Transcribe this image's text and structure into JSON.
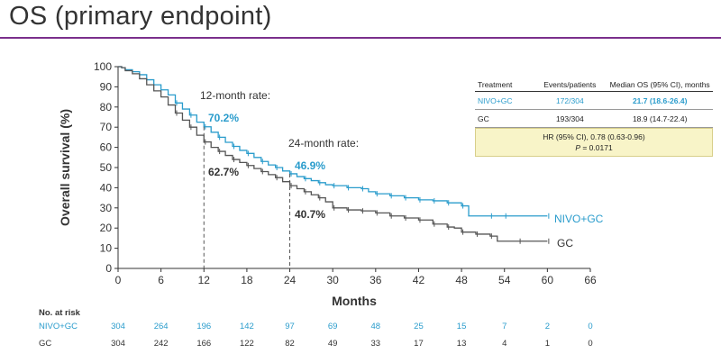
{
  "title": "OS (primary endpoint)",
  "colors": {
    "title_rule": "#7b2f8c",
    "nivo": "#2a9ccc",
    "gc": "#555555",
    "hr_box": "#f8f4c8"
  },
  "chart_data": {
    "type": "line",
    "title": "",
    "xlabel": "Months",
    "ylabel": "Overall survival (%)",
    "xlim": [
      0,
      66
    ],
    "ylim": [
      0,
      100
    ],
    "xticks": [
      0,
      6,
      12,
      18,
      24,
      30,
      36,
      42,
      48,
      54,
      60,
      66
    ],
    "yticks": [
      0,
      10,
      20,
      30,
      40,
      50,
      60,
      70,
      80,
      90,
      100
    ],
    "series": [
      {
        "name": "NIVO+GC",
        "color": "#2a9ccc",
        "points": [
          [
            0,
            100
          ],
          [
            0.5,
            99.5
          ],
          [
            1,
            98.5
          ],
          [
            2,
            97.5
          ],
          [
            3,
            96
          ],
          [
            4,
            93.5
          ],
          [
            5,
            91
          ],
          [
            6,
            88.5
          ],
          [
            7,
            86
          ],
          [
            8,
            82
          ],
          [
            9,
            79
          ],
          [
            10,
            76
          ],
          [
            11,
            72.5
          ],
          [
            12,
            70.2
          ],
          [
            13,
            67.5
          ],
          [
            14,
            65
          ],
          [
            15,
            62.5
          ],
          [
            16,
            60.5
          ],
          [
            17,
            58.5
          ],
          [
            18,
            57
          ],
          [
            19,
            55
          ],
          [
            20,
            53
          ],
          [
            21,
            51.3
          ],
          [
            22,
            50
          ],
          [
            23,
            48.3
          ],
          [
            24,
            46.9
          ],
          [
            25,
            45.5
          ],
          [
            26,
            44.5
          ],
          [
            27,
            43.5
          ],
          [
            28,
            42.5
          ],
          [
            29,
            41.5
          ],
          [
            30,
            41
          ],
          [
            32,
            40
          ],
          [
            34,
            39.5
          ],
          [
            35,
            38
          ],
          [
            36,
            37
          ],
          [
            38,
            36
          ],
          [
            40,
            35
          ],
          [
            42,
            34
          ],
          [
            44,
            33.5
          ],
          [
            46,
            32.5
          ],
          [
            48,
            31
          ],
          [
            49,
            26
          ],
          [
            52,
            26
          ],
          [
            54,
            26
          ],
          [
            60,
            26
          ]
        ],
        "end_label": "NIVO+GC"
      },
      {
        "name": "GC",
        "color": "#555555",
        "points": [
          [
            0,
            100
          ],
          [
            0.5,
            99.5
          ],
          [
            1,
            98
          ],
          [
            2,
            96.5
          ],
          [
            3,
            94
          ],
          [
            4,
            91
          ],
          [
            5,
            88
          ],
          [
            6,
            85
          ],
          [
            7,
            81
          ],
          [
            8,
            77
          ],
          [
            9,
            73.5
          ],
          [
            10,
            70
          ],
          [
            11,
            66
          ],
          [
            12,
            62.7
          ],
          [
            13,
            60
          ],
          [
            14,
            58
          ],
          [
            15,
            56
          ],
          [
            16,
            54
          ],
          [
            17,
            52.5
          ],
          [
            18,
            51
          ],
          [
            19,
            49.5
          ],
          [
            20,
            48
          ],
          [
            21,
            46.5
          ],
          [
            22,
            45
          ],
          [
            23,
            43
          ],
          [
            24,
            41
          ],
          [
            25,
            39.5
          ],
          [
            26,
            38
          ],
          [
            27,
            36.5
          ],
          [
            28,
            35
          ],
          [
            29,
            33
          ],
          [
            30,
            30
          ],
          [
            32,
            29
          ],
          [
            34,
            28.5
          ],
          [
            36,
            27.5
          ],
          [
            38,
            26
          ],
          [
            40,
            25
          ],
          [
            42,
            24
          ],
          [
            44,
            22
          ],
          [
            46,
            20.5
          ],
          [
            47,
            20
          ],
          [
            48,
            18
          ],
          [
            50,
            17
          ],
          [
            52,
            16
          ],
          [
            53,
            13.5
          ],
          [
            56,
            13.5
          ],
          [
            60,
            13.5
          ]
        ],
        "end_label": "GC"
      }
    ],
    "annotations": {
      "rate12_label": "12-month rate:",
      "rate12_nivo": "70.2%",
      "rate12_gc": "62.7%",
      "rate24_label": "24-month rate:",
      "rate24_nivo": "46.9%",
      "rate24_gc": "40.7%"
    }
  },
  "table": {
    "headers": [
      "Treatment",
      "Events/patients",
      "Median OS (95% CI), months"
    ],
    "rows": [
      {
        "treatment": "NIVO+GC",
        "events": "172/304",
        "median": "21.7 (18.6-26.4)"
      },
      {
        "treatment": "GC",
        "events": "193/304",
        "median": "18.9 (14.7-22.4)"
      }
    ],
    "hr_line": "HR (95% CI), 0.78 (0.63-0.96)",
    "p_label": "P",
    "p_value": " = 0.0171"
  },
  "risk_table": {
    "header": "No. at risk",
    "rows": [
      {
        "label": "NIVO+GC",
        "values": [
          "304",
          "264",
          "196",
          "142",
          "97",
          "69",
          "48",
          "25",
          "15",
          "7",
          "2",
          "0"
        ]
      },
      {
        "label": "GC",
        "values": [
          "304",
          "242",
          "166",
          "122",
          "82",
          "49",
          "33",
          "17",
          "13",
          "4",
          "1",
          "0"
        ]
      }
    ]
  }
}
